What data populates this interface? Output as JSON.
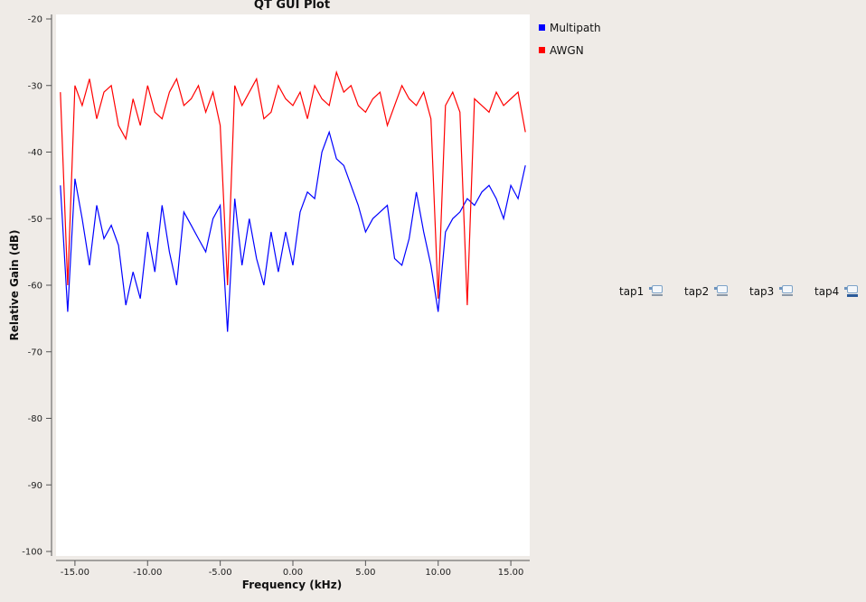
{
  "chart_data": {
    "type": "line",
    "title": "QT GUI Plot",
    "xlabel": "Frequency (kHz)",
    "ylabel": "Relative Gain (dB)",
    "xlim": [
      -16.3,
      16.3
    ],
    "ylim": [
      -100,
      -20
    ],
    "xticks": [
      -15,
      -10,
      -5,
      0,
      5,
      10,
      15
    ],
    "xtick_labels": [
      "-15.00",
      "-10.00",
      "-5.00",
      "0.00",
      "5.00",
      "10.00",
      "15.00"
    ],
    "yticks": [
      -20,
      -30,
      -40,
      -50,
      -60,
      -70,
      -80,
      -90,
      -100
    ],
    "ytick_labels": [
      "-20",
      "-30",
      "-40",
      "-50",
      "-60",
      "-70",
      "-80",
      "-90",
      "-100"
    ],
    "grid": false,
    "legend_position": "right",
    "series": [
      {
        "name": "Multipath",
        "color": "#0000ff",
        "x": [
          -16,
          -15.5,
          -15,
          -14.5,
          -14,
          -13.5,
          -13,
          -12.5,
          -12,
          -11.5,
          -11,
          -10.5,
          -10,
          -9.5,
          -9,
          -8.5,
          -8,
          -7.5,
          -7,
          -6.5,
          -6,
          -5.5,
          -5,
          -4.5,
          -4,
          -3.5,
          -3,
          -2.5,
          -2,
          -1.5,
          -1,
          -0.5,
          0,
          0.5,
          1,
          1.5,
          2,
          2.5,
          3,
          3.5,
          4,
          4.5,
          5,
          5.5,
          6,
          6.5,
          7,
          7.5,
          8,
          8.5,
          9,
          9.5,
          10,
          10.5,
          11,
          11.5,
          12,
          12.5,
          13,
          13.5,
          14,
          14.5,
          15,
          15.5,
          16
        ],
        "y": [
          -45,
          -64,
          -44,
          -50,
          -57,
          -48,
          -53,
          -51,
          -54,
          -63,
          -58,
          -62,
          -52,
          -58,
          -48,
          -55,
          -60,
          -49,
          -51,
          -53,
          -55,
          -50,
          -48,
          -67,
          -47,
          -57,
          -50,
          -56,
          -60,
          -52,
          -58,
          -52,
          -57,
          -49,
          -46,
          -47,
          -40,
          -37,
          -41,
          -42,
          -45,
          -48,
          -52,
          -50,
          -49,
          -48,
          -56,
          -57,
          -53,
          -46,
          -52,
          -57,
          -64,
          -52,
          -50,
          -49,
          -47,
          -48,
          -46,
          -45,
          -47,
          -50,
          -45,
          -47,
          -42
        ]
      },
      {
        "name": "AWGN",
        "color": "#ff0000",
        "x": [
          -16,
          -15.5,
          -15,
          -14.5,
          -14,
          -13.5,
          -13,
          -12.5,
          -12,
          -11.5,
          -11,
          -10.5,
          -10,
          -9.5,
          -9,
          -8.5,
          -8,
          -7.5,
          -7,
          -6.5,
          -6,
          -5.5,
          -5,
          -4.5,
          -4,
          -3.5,
          -3,
          -2.5,
          -2,
          -1.5,
          -1,
          -0.5,
          0,
          0.5,
          1,
          1.5,
          2,
          2.5,
          3,
          3.5,
          4,
          4.5,
          5,
          5.5,
          6,
          6.5,
          7,
          7.5,
          8,
          8.5,
          9,
          9.5,
          10,
          10.5,
          11,
          11.5,
          12,
          12.5,
          13,
          13.5,
          14,
          14.5,
          15,
          15.5,
          16
        ],
        "y": [
          -31,
          -60,
          -30,
          -33,
          -29,
          -35,
          -31,
          -30,
          -36,
          -38,
          -32,
          -36,
          -30,
          -34,
          -35,
          -31,
          -29,
          -33,
          -32,
          -30,
          -34,
          -31,
          -36,
          -60,
          -30,
          -33,
          -31,
          -29,
          -35,
          -34,
          -30,
          -32,
          -33,
          -31,
          -35,
          -30,
          -32,
          -33,
          -28,
          -31,
          -30,
          -33,
          -34,
          -32,
          -31,
          -36,
          -33,
          -30,
          -32,
          -33,
          -31,
          -35,
          -62,
          -33,
          -31,
          -34,
          -63,
          -32,
          -33,
          -34,
          -31,
          -33,
          -32,
          -31,
          -37
        ]
      }
    ]
  },
  "taps": [
    {
      "label": "tap1",
      "icon": "dial-icon",
      "active": false
    },
    {
      "label": "tap2",
      "icon": "dial-icon",
      "active": false
    },
    {
      "label": "tap3",
      "icon": "dial-icon",
      "active": false
    },
    {
      "label": "tap4",
      "icon": "dial-icon",
      "active": true
    }
  ]
}
